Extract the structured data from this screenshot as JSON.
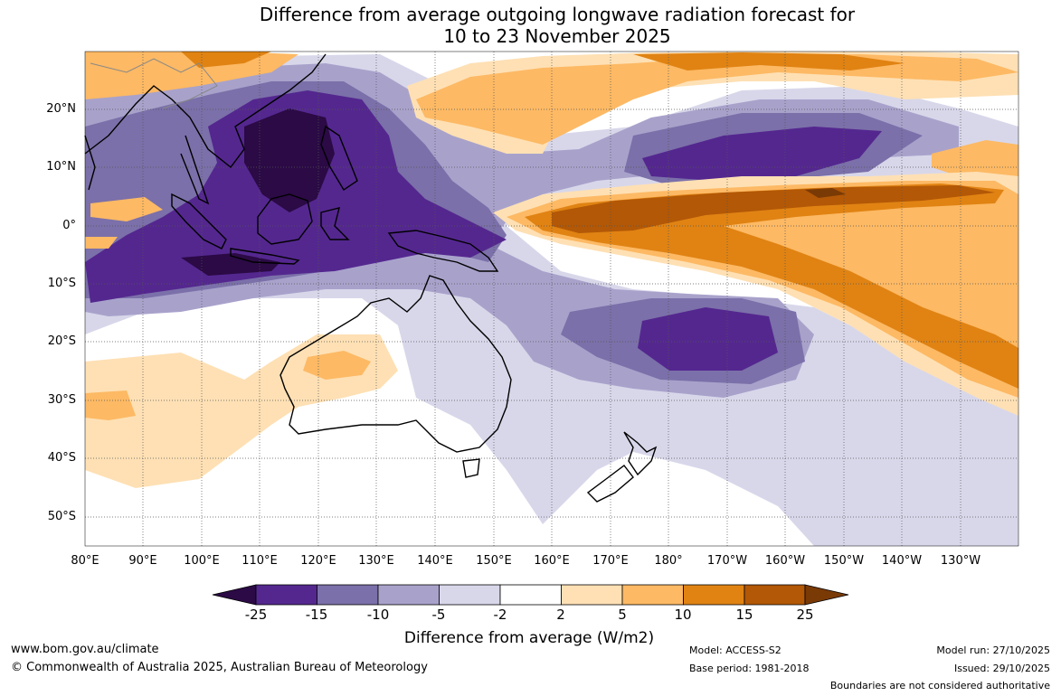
{
  "title": {
    "line1": "Difference from average outgoing longwave radiation forecast for",
    "line2": "10 to 23 November 2025"
  },
  "map": {
    "region": "Indo-Pacific and Australasia",
    "latitude_labels": [
      "20°N",
      "10°N",
      "0°",
      "10°S",
      "20°S",
      "30°S",
      "40°S",
      "50°S"
    ],
    "longitude_labels": [
      "80°E",
      "90°E",
      "100°E",
      "110°E",
      "120°E",
      "130°E",
      "140°E",
      "150°E",
      "160°E",
      "170°E",
      "180°",
      "170°W",
      "160°W",
      "150°W",
      "140°W",
      "130°W"
    ]
  },
  "colorbar": {
    "ticks": [
      "-25",
      "-15",
      "-10",
      "-5",
      "-2",
      "2",
      "5",
      "10",
      "15",
      "25"
    ],
    "colors": [
      "#2b0a45",
      "#54278f",
      "#7b70a9",
      "#a8a2cb",
      "#d8d7ea",
      "#ffffff",
      "#fee0b4",
      "#fdb964",
      "#e08313",
      "#b35806",
      "#7a3a05"
    ],
    "label": "Difference from average (W/m2)"
  },
  "footer": {
    "website": "www.bom.gov.au/climate",
    "copyright": "© Commonwealth of Australia 2025, Australian Bureau of Meteorology",
    "model": "Model: ACCESS-S2",
    "base_period": "Base period: 1981-2018",
    "model_run": "Model run: 27/10/2025",
    "issued": "Issued: 29/10/2025",
    "disclaimer": "Boundaries are not considered authoritative"
  }
}
